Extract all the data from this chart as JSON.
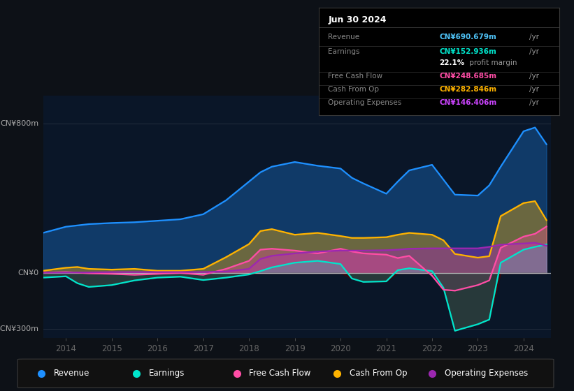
{
  "bg_color": "#0d1117",
  "plot_bg_color": "#0a1628",
  "ylim": [
    -350,
    950
  ],
  "ytick_positions": [
    -300,
    0,
    800
  ],
  "ytick_labels": [
    "-CN¥300m",
    "CN¥0",
    "CN¥800m"
  ],
  "info_box": {
    "date": "Jun 30 2024",
    "rows": [
      {
        "label": "Revenue",
        "value": "CN¥690.679m",
        "unit": "/yr",
        "value_color": "#4fc3f7"
      },
      {
        "label": "Earnings",
        "value": "CN¥152.936m",
        "unit": "/yr",
        "value_color": "#00e5cc"
      },
      {
        "label": "",
        "value": "22.1%",
        "unit": " profit margin",
        "value_color": "#ffffff"
      },
      {
        "label": "Free Cash Flow",
        "value": "CN¥248.685m",
        "unit": "/yr",
        "value_color": "#ff4da6"
      },
      {
        "label": "Cash From Op",
        "value": "CN¥282.846m",
        "unit": "/yr",
        "value_color": "#ffb300"
      },
      {
        "label": "Operating Expenses",
        "value": "CN¥146.406m",
        "unit": "/yr",
        "value_color": "#cc44ff"
      }
    ]
  },
  "years": [
    2013.5,
    2014.0,
    2014.25,
    2014.5,
    2015.0,
    2015.5,
    2016.0,
    2016.5,
    2017.0,
    2017.5,
    2018.0,
    2018.25,
    2018.5,
    2019.0,
    2019.5,
    2020.0,
    2020.25,
    2020.5,
    2021.0,
    2021.25,
    2021.5,
    2022.0,
    2022.25,
    2022.5,
    2023.0,
    2023.25,
    2023.5,
    2024.0,
    2024.25,
    2024.5
  ],
  "revenue": [
    215,
    248,
    255,
    262,
    268,
    272,
    280,
    288,
    315,
    390,
    490,
    540,
    570,
    595,
    575,
    560,
    510,
    480,
    425,
    490,
    550,
    580,
    500,
    420,
    415,
    470,
    570,
    760,
    780,
    690
  ],
  "earnings": [
    -25,
    -18,
    -55,
    -75,
    -65,
    -40,
    -25,
    -20,
    -38,
    -25,
    -8,
    10,
    30,
    55,
    65,
    48,
    -30,
    -48,
    -45,
    15,
    25,
    10,
    -80,
    -310,
    -275,
    -250,
    55,
    125,
    140,
    153
  ],
  "free_cash_flow": [
    2,
    5,
    2,
    -2,
    -5,
    -10,
    -5,
    0,
    -10,
    22,
    65,
    125,
    130,
    120,
    105,
    130,
    115,
    105,
    98,
    80,
    92,
    -15,
    -90,
    -95,
    -65,
    -40,
    135,
    195,
    210,
    249
  ],
  "cash_from_op": [
    12,
    28,
    32,
    22,
    18,
    22,
    12,
    12,
    22,
    85,
    155,
    225,
    235,
    205,
    215,
    198,
    188,
    188,
    192,
    205,
    215,
    205,
    175,
    102,
    82,
    90,
    305,
    375,
    385,
    283
  ],
  "operating_expenses": [
    2,
    2,
    3,
    3,
    5,
    5,
    5,
    5,
    5,
    8,
    22,
    75,
    92,
    105,
    115,
    120,
    120,
    120,
    122,
    125,
    130,
    132,
    132,
    132,
    132,
    140,
    152,
    158,
    162,
    146
  ],
  "colors": {
    "revenue": "#1e90ff",
    "earnings": "#00e5cc",
    "free_cash_flow": "#ff4da6",
    "cash_from_op": "#ffb300",
    "operating_expenses": "#9c27b0"
  },
  "legend_items": [
    {
      "label": "Revenue",
      "color": "#1e90ff"
    },
    {
      "label": "Earnings",
      "color": "#00e5cc"
    },
    {
      "label": "Free Cash Flow",
      "color": "#ff4da6"
    },
    {
      "label": "Cash From Op",
      "color": "#ffb300"
    },
    {
      "label": "Operating Expenses",
      "color": "#9c27b0"
    }
  ],
  "xtick_years": [
    2014,
    2015,
    2016,
    2017,
    2018,
    2019,
    2020,
    2021,
    2022,
    2023,
    2024
  ]
}
